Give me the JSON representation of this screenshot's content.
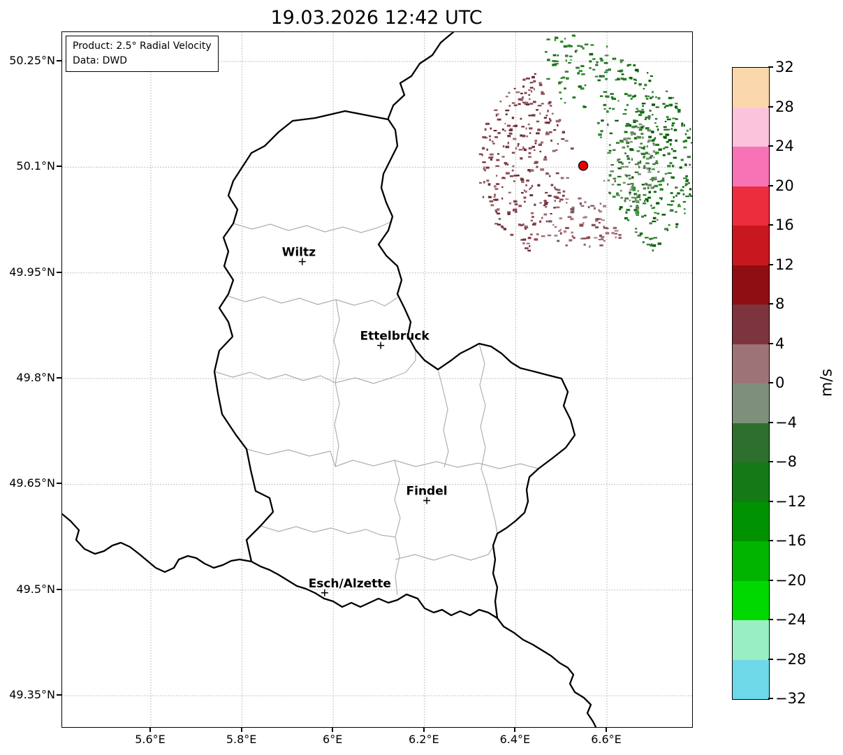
{
  "title": "19.03.2026 12:42 UTC",
  "legend": {
    "product": "Product: 2.5° Radial Velocity",
    "source": "Data: DWD"
  },
  "axes": {
    "lat_ticks": [
      {
        "label": "50.25°N",
        "value": 50.25
      },
      {
        "label": "50.1°N",
        "value": 50.1
      },
      {
        "label": "49.95°N",
        "value": 49.95
      },
      {
        "label": "49.8°N",
        "value": 49.8
      },
      {
        "label": "49.65°N",
        "value": 49.65
      },
      {
        "label": "49.5°N",
        "value": 49.5
      },
      {
        "label": "49.35°N",
        "value": 49.35
      }
    ],
    "lon_ticks": [
      {
        "label": "5.6°E",
        "value": 5.6
      },
      {
        "label": "5.8°E",
        "value": 5.8
      },
      {
        "label": "6°E",
        "value": 6.0
      },
      {
        "label": "6.2°E",
        "value": 6.2
      },
      {
        "label": "6.4°E",
        "value": 6.4
      },
      {
        "label": "6.6°E",
        "value": 6.6
      }
    ]
  },
  "cities": [
    {
      "name": "Wiltz",
      "lon": 5.932,
      "lat": 49.966,
      "label_dx": -5
    },
    {
      "name": "Ettelbruck",
      "lon": 6.104,
      "lat": 49.847,
      "label_dx": 20
    },
    {
      "name": "Findel",
      "lon": 6.205,
      "lat": 49.627,
      "label_dx": 0
    },
    {
      "name": "Esch/Alzette",
      "lon": 5.981,
      "lat": 49.496,
      "label_dx": 36
    }
  ],
  "radar_site": {
    "lon": 6.548,
    "lat": 50.102,
    "marker_color": "#e60000"
  },
  "colorbar": {
    "label": "m/s",
    "tick_labels": [
      "32",
      "28",
      "24",
      "20",
      "16",
      "12",
      "8",
      "4",
      "0",
      "−4",
      "−8",
      "−12",
      "−16",
      "−20",
      "−24",
      "−28",
      "−32"
    ],
    "segment_colors_top_to_bottom": [
      "#fbd8ab",
      "#fcc3dc",
      "#f873b6",
      "#ec2d3e",
      "#c8171e",
      "#8f0e14",
      "#7d343c",
      "#9e7377",
      "#7e8f7a",
      "#2e6e2e",
      "#157a15",
      "#009200",
      "#00b400",
      "#00d900",
      "#9aeec4",
      "#6fd8e8"
    ]
  },
  "radar_echo": {
    "seed": 20260319,
    "clusters": [
      {
        "name": "green-east",
        "angle_start": -52,
        "angle_end": 72,
        "r_min": 30,
        "r_max": 162,
        "count": 330,
        "colors": [
          "#0d6b0d",
          "#1e7d1e",
          "#2f8f2f",
          "#0a590a",
          "#417a41"
        ]
      },
      {
        "name": "green-north",
        "angle_start": 72,
        "angle_end": 112,
        "r_min": 80,
        "r_max": 175,
        "count": 70,
        "colors": [
          "#0d6b0d",
          "#1e7d1e",
          "#2f8f2f",
          "#417a41"
        ]
      },
      {
        "name": "red-west",
        "angle_start": 116,
        "angle_end": 238,
        "r_min": 22,
        "r_max": 150,
        "count": 290,
        "colors": [
          "#7c3a43",
          "#8e4a52",
          "#682a32",
          "#9a6a6f",
          "#85454d"
        ]
      },
      {
        "name": "mauve-south",
        "angle_start": 238,
        "angle_end": 298,
        "r_min": 40,
        "r_max": 118,
        "count": 80,
        "colors": [
          "#9a6a6f",
          "#ae8188",
          "#8e4a52",
          "#77575c"
        ]
      },
      {
        "name": "graygreen-east",
        "angle_start": -42,
        "angle_end": 38,
        "r_min": 32,
        "r_max": 108,
        "count": 90,
        "colors": [
          "#567a50",
          "#6b8a64",
          "#7e9377"
        ]
      },
      {
        "name": "far-north-spots",
        "angle_start": 93,
        "angle_end": 107,
        "r_min": 168,
        "r_max": 188,
        "count": 9,
        "colors": [
          "#1e7d1e",
          "#2f8f2f"
        ]
      }
    ]
  },
  "chart_data": {
    "type": "map",
    "title": "19.03.2026 12:42 UTC",
    "product": "2.5° Radial Velocity",
    "data_source": "DWD",
    "units": "m/s",
    "value_scale_ticks": [
      32,
      28,
      24,
      20,
      16,
      12,
      8,
      4,
      0,
      -4,
      -8,
      -12,
      -16,
      -20,
      -24,
      -28,
      -32
    ],
    "lon_axis_ticks": [
      5.6,
      5.8,
      6.0,
      6.2,
      6.4,
      6.6
    ],
    "lat_axis_ticks": [
      50.25,
      50.1,
      49.95,
      49.8,
      49.65,
      49.5,
      49.35
    ],
    "radar_site_lonlat": [
      6.548,
      50.102
    ],
    "labeled_places": [
      "Wiltz",
      "Ettelbruck",
      "Findel",
      "Esch/Alzette"
    ],
    "echo_summary": "Velocity echoes around radar site northeast of Luxembourg: positive values (red/maroon, away from radar) west of site, negative values (green, toward radar) east and north of site"
  }
}
